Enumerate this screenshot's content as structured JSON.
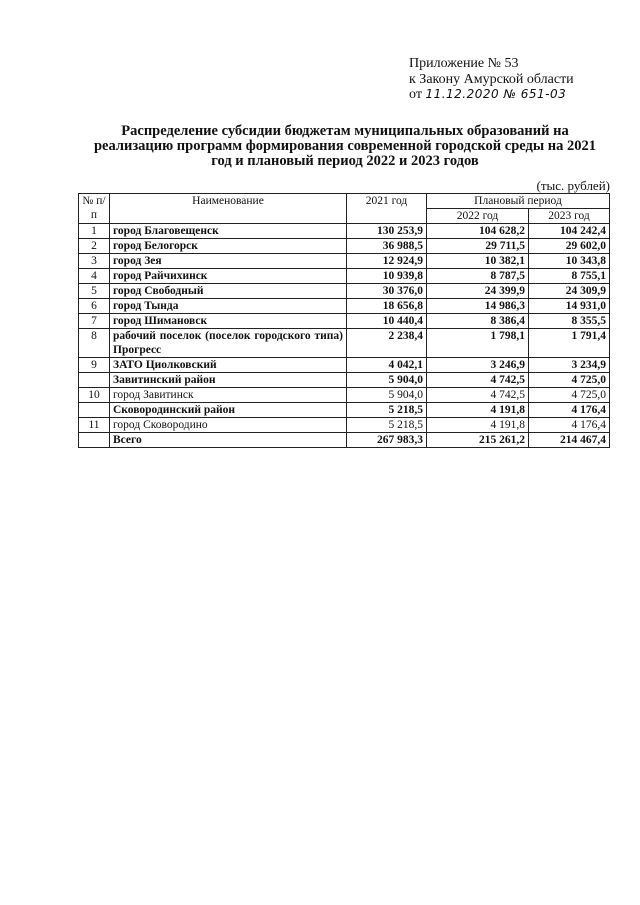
{
  "appendix": {
    "line1": "Приложение № 53",
    "line2": "к Закону Амурской области",
    "line3_prefix": "от",
    "line3_handwritten": "11.12.2020 № 651-03"
  },
  "title": "Распределение субсидии бюджетам муниципальных образований на реализацию программ формирования современной городской среды на 2021 год и плановый период 2022 и 2023 годов",
  "unit": "(тыс. рублей)",
  "table": {
    "headers": {
      "num": "№ п/п",
      "name": "Наименование",
      "y2021": "2021 год",
      "planned": "Плановый период",
      "y2022": "2022 год",
      "y2023": "2023 год"
    },
    "rows": [
      {
        "num": "1",
        "name": "город Благовещенск",
        "y2021": "130 253,9",
        "y2022": "104 628,2",
        "y2023": "104 242,4",
        "bold": true
      },
      {
        "num": "2",
        "name": "город Белогорск",
        "y2021": "36 988,5",
        "y2022": "29 711,5",
        "y2023": "29 602,0",
        "bold": true
      },
      {
        "num": "3",
        "name": "город Зея",
        "y2021": "12 924,9",
        "y2022": "10 382,1",
        "y2023": "10 343,8",
        "bold": true
      },
      {
        "num": "4",
        "name": "город Райчихинск",
        "y2021": "10 939,8",
        "y2022": "8 787,5",
        "y2023": "8 755,1",
        "bold": true
      },
      {
        "num": "5",
        "name": "город Свободный",
        "y2021": "30 376,0",
        "y2022": "24 399,9",
        "y2023": "24 309,9",
        "bold": true
      },
      {
        "num": "6",
        "name": "город Тында",
        "y2021": "18 656,8",
        "y2022": "14 986,3",
        "y2023": "14 931,0",
        "bold": true
      },
      {
        "num": "7",
        "name": "город Шимановск",
        "y2021": "10 440,4",
        "y2022": "8 386,4",
        "y2023": "8 355,5",
        "bold": true
      },
      {
        "num": "8",
        "name": "рабочий поселок (поселок городского типа) Прогресс",
        "y2021": "2 238,4",
        "y2022": "1 798,1",
        "y2023": "1 791,4",
        "bold": true
      },
      {
        "num": "9",
        "name": "ЗАТО Циолковский",
        "y2021": "4 042,1",
        "y2022": "3 246,9",
        "y2023": "3 234,9",
        "bold": true
      },
      {
        "num": "",
        "name": "Завитинский район",
        "y2021": "5 904,0",
        "y2022": "4 742,5",
        "y2023": "4 725,0",
        "bold": true
      },
      {
        "num": "10",
        "name": "город Завитинск",
        "y2021": "5 904,0",
        "y2022": "4 742,5",
        "y2023": "4 725,0",
        "bold": false
      },
      {
        "num": "",
        "name": "Сковородинский район",
        "y2021": "5 218,5",
        "y2022": "4 191,8",
        "y2023": "4 176,4",
        "bold": true
      },
      {
        "num": "11",
        "name": "город Сковородино",
        "y2021": "5 218,5",
        "y2022": "4 191,8",
        "y2023": "4 176,4",
        "bold": false
      },
      {
        "num": "",
        "name": "Всего",
        "y2021": "267 983,3",
        "y2022": "215 261,2",
        "y2023": "214 467,4",
        "bold": true
      }
    ]
  }
}
